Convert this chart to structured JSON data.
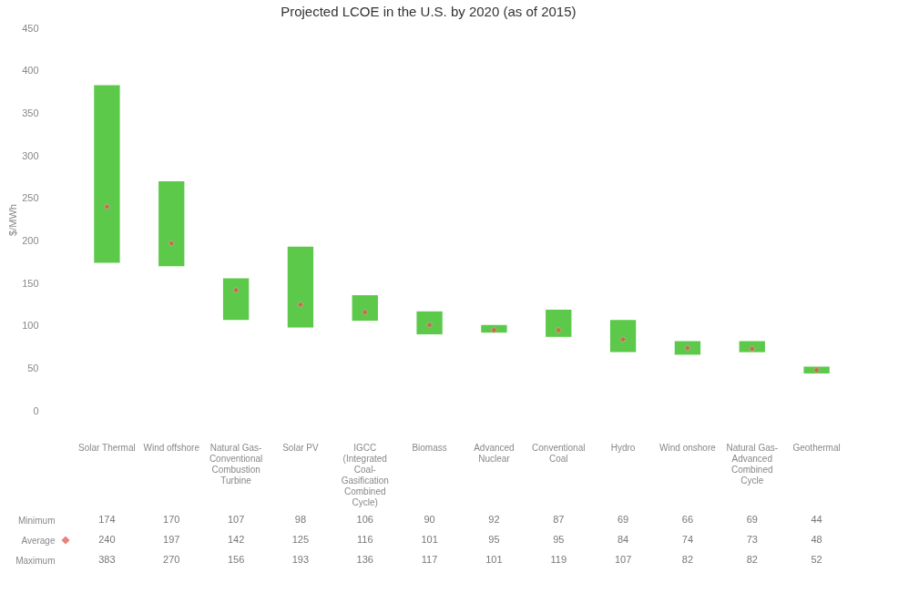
{
  "chart_data": {
    "type": "bar",
    "title": "Projected LCOE in the U.S. by 2020 (as of 2015)",
    "ylabel": "$/MWh",
    "categories": [
      "Solar Thermal",
      "Wind offshore",
      "Natural Gas-Conventional Combustion Turbine",
      "Solar PV",
      "IGCC (Integrated Coal-Gasification Combined Cycle)",
      "Biomass",
      "Advanced Nuclear",
      "Conventional Coal",
      "Hydro",
      "Wind onshore",
      "Natural Gas-Advanced Combined Cycle",
      "Geothermal"
    ],
    "series": [
      {
        "color": "#5cc94a",
        "base": [
          174,
          170,
          107,
          98,
          106,
          90,
          92,
          87,
          69,
          66,
          69,
          44
        ],
        "values": [
          209,
          100,
          49,
          95,
          30,
          27,
          9,
          32,
          38,
          16,
          13,
          8
        ]
      },
      {
        "name": "Average",
        "type": "scatter",
        "marker": "diamond",
        "color": "#e0504a",
        "values": [
          240,
          197,
          142,
          125,
          116,
          101,
          95,
          95,
          84,
          74,
          73,
          48
        ],
        "value_labels": [
          "240",
          "197",
          "142",
          "125",
          "116",
          "101",
          "95",
          "95",
          "84",
          "74",
          "73",
          "48"
        ]
      }
    ],
    "annotations": [
      "Minimum",
      "174",
      "170",
      "107",
      "98",
      "106",
      "90",
      "92",
      "87",
      "69",
      "66",
      "69",
      "44",
      "Maximum",
      "383",
      "270",
      "156",
      "193",
      "136",
      "117",
      "101",
      "119",
      "107",
      "82",
      "82",
      "52"
    ],
    "ylim": [
      0,
      450
    ],
    "yticks": [
      0,
      50,
      100,
      150,
      200,
      250,
      300,
      350,
      400,
      450
    ],
    "grid": false,
    "legend": "bottom left"
  }
}
